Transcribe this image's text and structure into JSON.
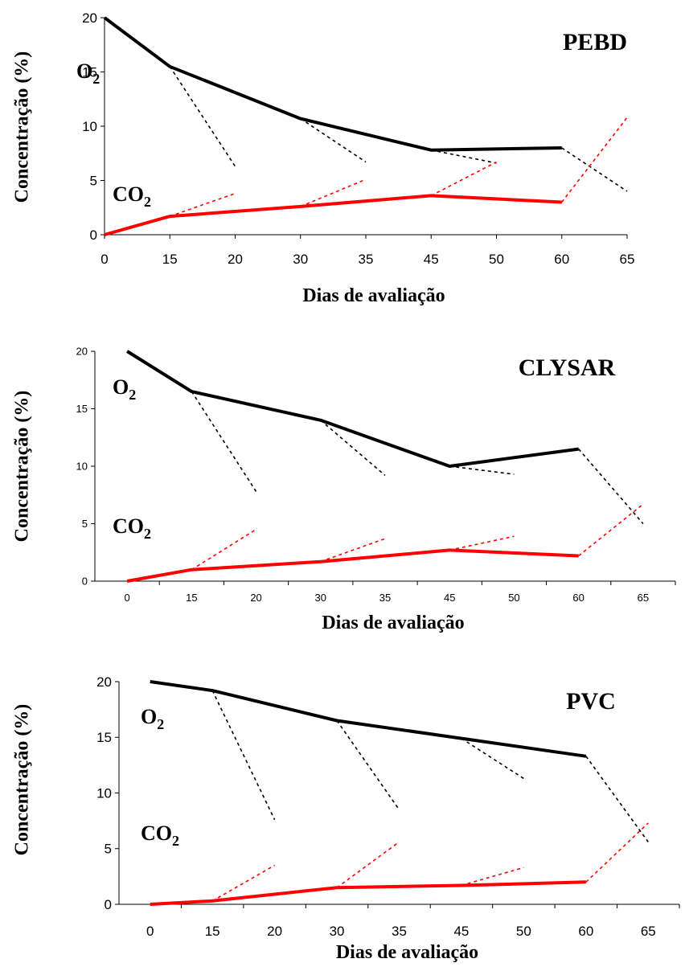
{
  "chart_data": [
    {
      "type": "line",
      "title": "PEBD",
      "xlabel": "Dias de avaliação",
      "ylabel": "Concentração (%)",
      "categories": [
        "0",
        "15",
        "20",
        "30",
        "35",
        "45",
        "50",
        "60",
        "65"
      ],
      "ylim": [
        0,
        20
      ],
      "yticks": [
        "0",
        "5",
        "10",
        "15",
        "20"
      ],
      "series": [
        {
          "name": "O2",
          "label_main": "O",
          "label_sub": "2",
          "color": "#000000",
          "values": [
            20,
            15.5,
            null,
            10.7,
            null,
            7.8,
            null,
            8.0,
            null
          ]
        },
        {
          "name": "CO2",
          "label_main": "CO",
          "label_sub": "2",
          "color": "#ff0000",
          "values": [
            0,
            1.7,
            null,
            2.6,
            null,
            3.6,
            null,
            3.0,
            null
          ]
        }
      ],
      "projections": [
        {
          "color": "#000000",
          "from": [
            "15",
            15.5
          ],
          "to": [
            "20",
            6.3
          ]
        },
        {
          "color": "#000000",
          "from": [
            "30",
            10.7
          ],
          "to": [
            "35",
            6.7
          ]
        },
        {
          "color": "#000000",
          "from": [
            "45",
            7.8
          ],
          "to": [
            "50",
            6.6
          ]
        },
        {
          "color": "#000000",
          "from": [
            "60",
            8.0
          ],
          "to": [
            "65",
            4.0
          ]
        },
        {
          "color": "#ff0000",
          "from": [
            "15",
            1.7
          ],
          "to": [
            "20",
            3.8
          ]
        },
        {
          "color": "#ff0000",
          "from": [
            "30",
            2.6
          ],
          "to": [
            "35",
            5.1
          ]
        },
        {
          "color": "#ff0000",
          "from": [
            "45",
            3.6
          ],
          "to": [
            "50",
            6.7
          ]
        },
        {
          "color": "#ff0000",
          "from": [
            "60",
            3.0
          ],
          "to": [
            "65",
            10.8
          ]
        }
      ]
    },
    {
      "type": "line",
      "title": "CLYSAR",
      "xlabel": "Dias de avaliação",
      "ylabel": "Concentração (%)",
      "categories": [
        "0",
        "15",
        "20",
        "30",
        "35",
        "45",
        "50",
        "60",
        "65"
      ],
      "ylim": [
        0,
        20
      ],
      "yticks": [
        "0",
        "5",
        "10",
        "15",
        "20"
      ],
      "series": [
        {
          "name": "O2",
          "label_main": "O",
          "label_sub": "2",
          "color": "#000000",
          "values": [
            20,
            16.5,
            null,
            14.0,
            null,
            10.0,
            null,
            11.5,
            null
          ]
        },
        {
          "name": "CO2",
          "label_main": "CO",
          "label_sub": "2",
          "color": "#ff0000",
          "values": [
            0,
            1.0,
            null,
            1.7,
            null,
            2.7,
            null,
            2.2,
            null
          ]
        }
      ],
      "projections": [
        {
          "color": "#000000",
          "from": [
            "15",
            16.5
          ],
          "to": [
            "20",
            7.8
          ]
        },
        {
          "color": "#000000",
          "from": [
            "30",
            14.0
          ],
          "to": [
            "35",
            9.2
          ]
        },
        {
          "color": "#000000",
          "from": [
            "45",
            10.0
          ],
          "to": [
            "50",
            9.3
          ]
        },
        {
          "color": "#000000",
          "from": [
            "60",
            11.5
          ],
          "to": [
            "65",
            5.0
          ]
        },
        {
          "color": "#ff0000",
          "from": [
            "15",
            1.0
          ],
          "to": [
            "20",
            4.5
          ]
        },
        {
          "color": "#ff0000",
          "from": [
            "30",
            1.7
          ],
          "to": [
            "35",
            3.7
          ]
        },
        {
          "color": "#ff0000",
          "from": [
            "45",
            2.7
          ],
          "to": [
            "50",
            3.9
          ]
        },
        {
          "color": "#ff0000",
          "from": [
            "60",
            2.2
          ],
          "to": [
            "65",
            6.7
          ]
        }
      ]
    },
    {
      "type": "line",
      "title": "PVC",
      "xlabel": "Dias de avaliação",
      "ylabel": "Concentração (%)",
      "categories": [
        "0",
        "15",
        "20",
        "30",
        "35",
        "45",
        "50",
        "60",
        "65"
      ],
      "ylim": [
        0,
        20
      ],
      "yticks": [
        "0",
        "5",
        "10",
        "15",
        "20"
      ],
      "series": [
        {
          "name": "O2",
          "label_main": "O",
          "label_sub": "2",
          "color": "#000000",
          "values": [
            20,
            19.2,
            null,
            16.5,
            null,
            14.9,
            null,
            13.3,
            null
          ]
        },
        {
          "name": "CO2",
          "label_main": "CO",
          "label_sub": "2",
          "color": "#ff0000",
          "values": [
            0,
            0.3,
            null,
            1.5,
            null,
            1.7,
            null,
            2.0,
            null
          ]
        }
      ],
      "projections": [
        {
          "color": "#000000",
          "from": [
            "15",
            19.2
          ],
          "to": [
            "20",
            7.6
          ]
        },
        {
          "color": "#000000",
          "from": [
            "30",
            16.5
          ],
          "to": [
            "35",
            8.5
          ]
        },
        {
          "color": "#000000",
          "from": [
            "45",
            14.9
          ],
          "to": [
            "50",
            11.3
          ]
        },
        {
          "color": "#000000",
          "from": [
            "60",
            13.3
          ],
          "to": [
            "65",
            5.6
          ]
        },
        {
          "color": "#ff0000",
          "from": [
            "15",
            0.3
          ],
          "to": [
            "20",
            3.5
          ]
        },
        {
          "color": "#ff0000",
          "from": [
            "30",
            1.5
          ],
          "to": [
            "35",
            5.6
          ]
        },
        {
          "color": "#ff0000",
          "from": [
            "45",
            1.7
          ],
          "to": [
            "50",
            3.3
          ]
        },
        {
          "color": "#ff0000",
          "from": [
            "60",
            2.0
          ],
          "to": [
            "65",
            7.3
          ]
        }
      ]
    }
  ]
}
